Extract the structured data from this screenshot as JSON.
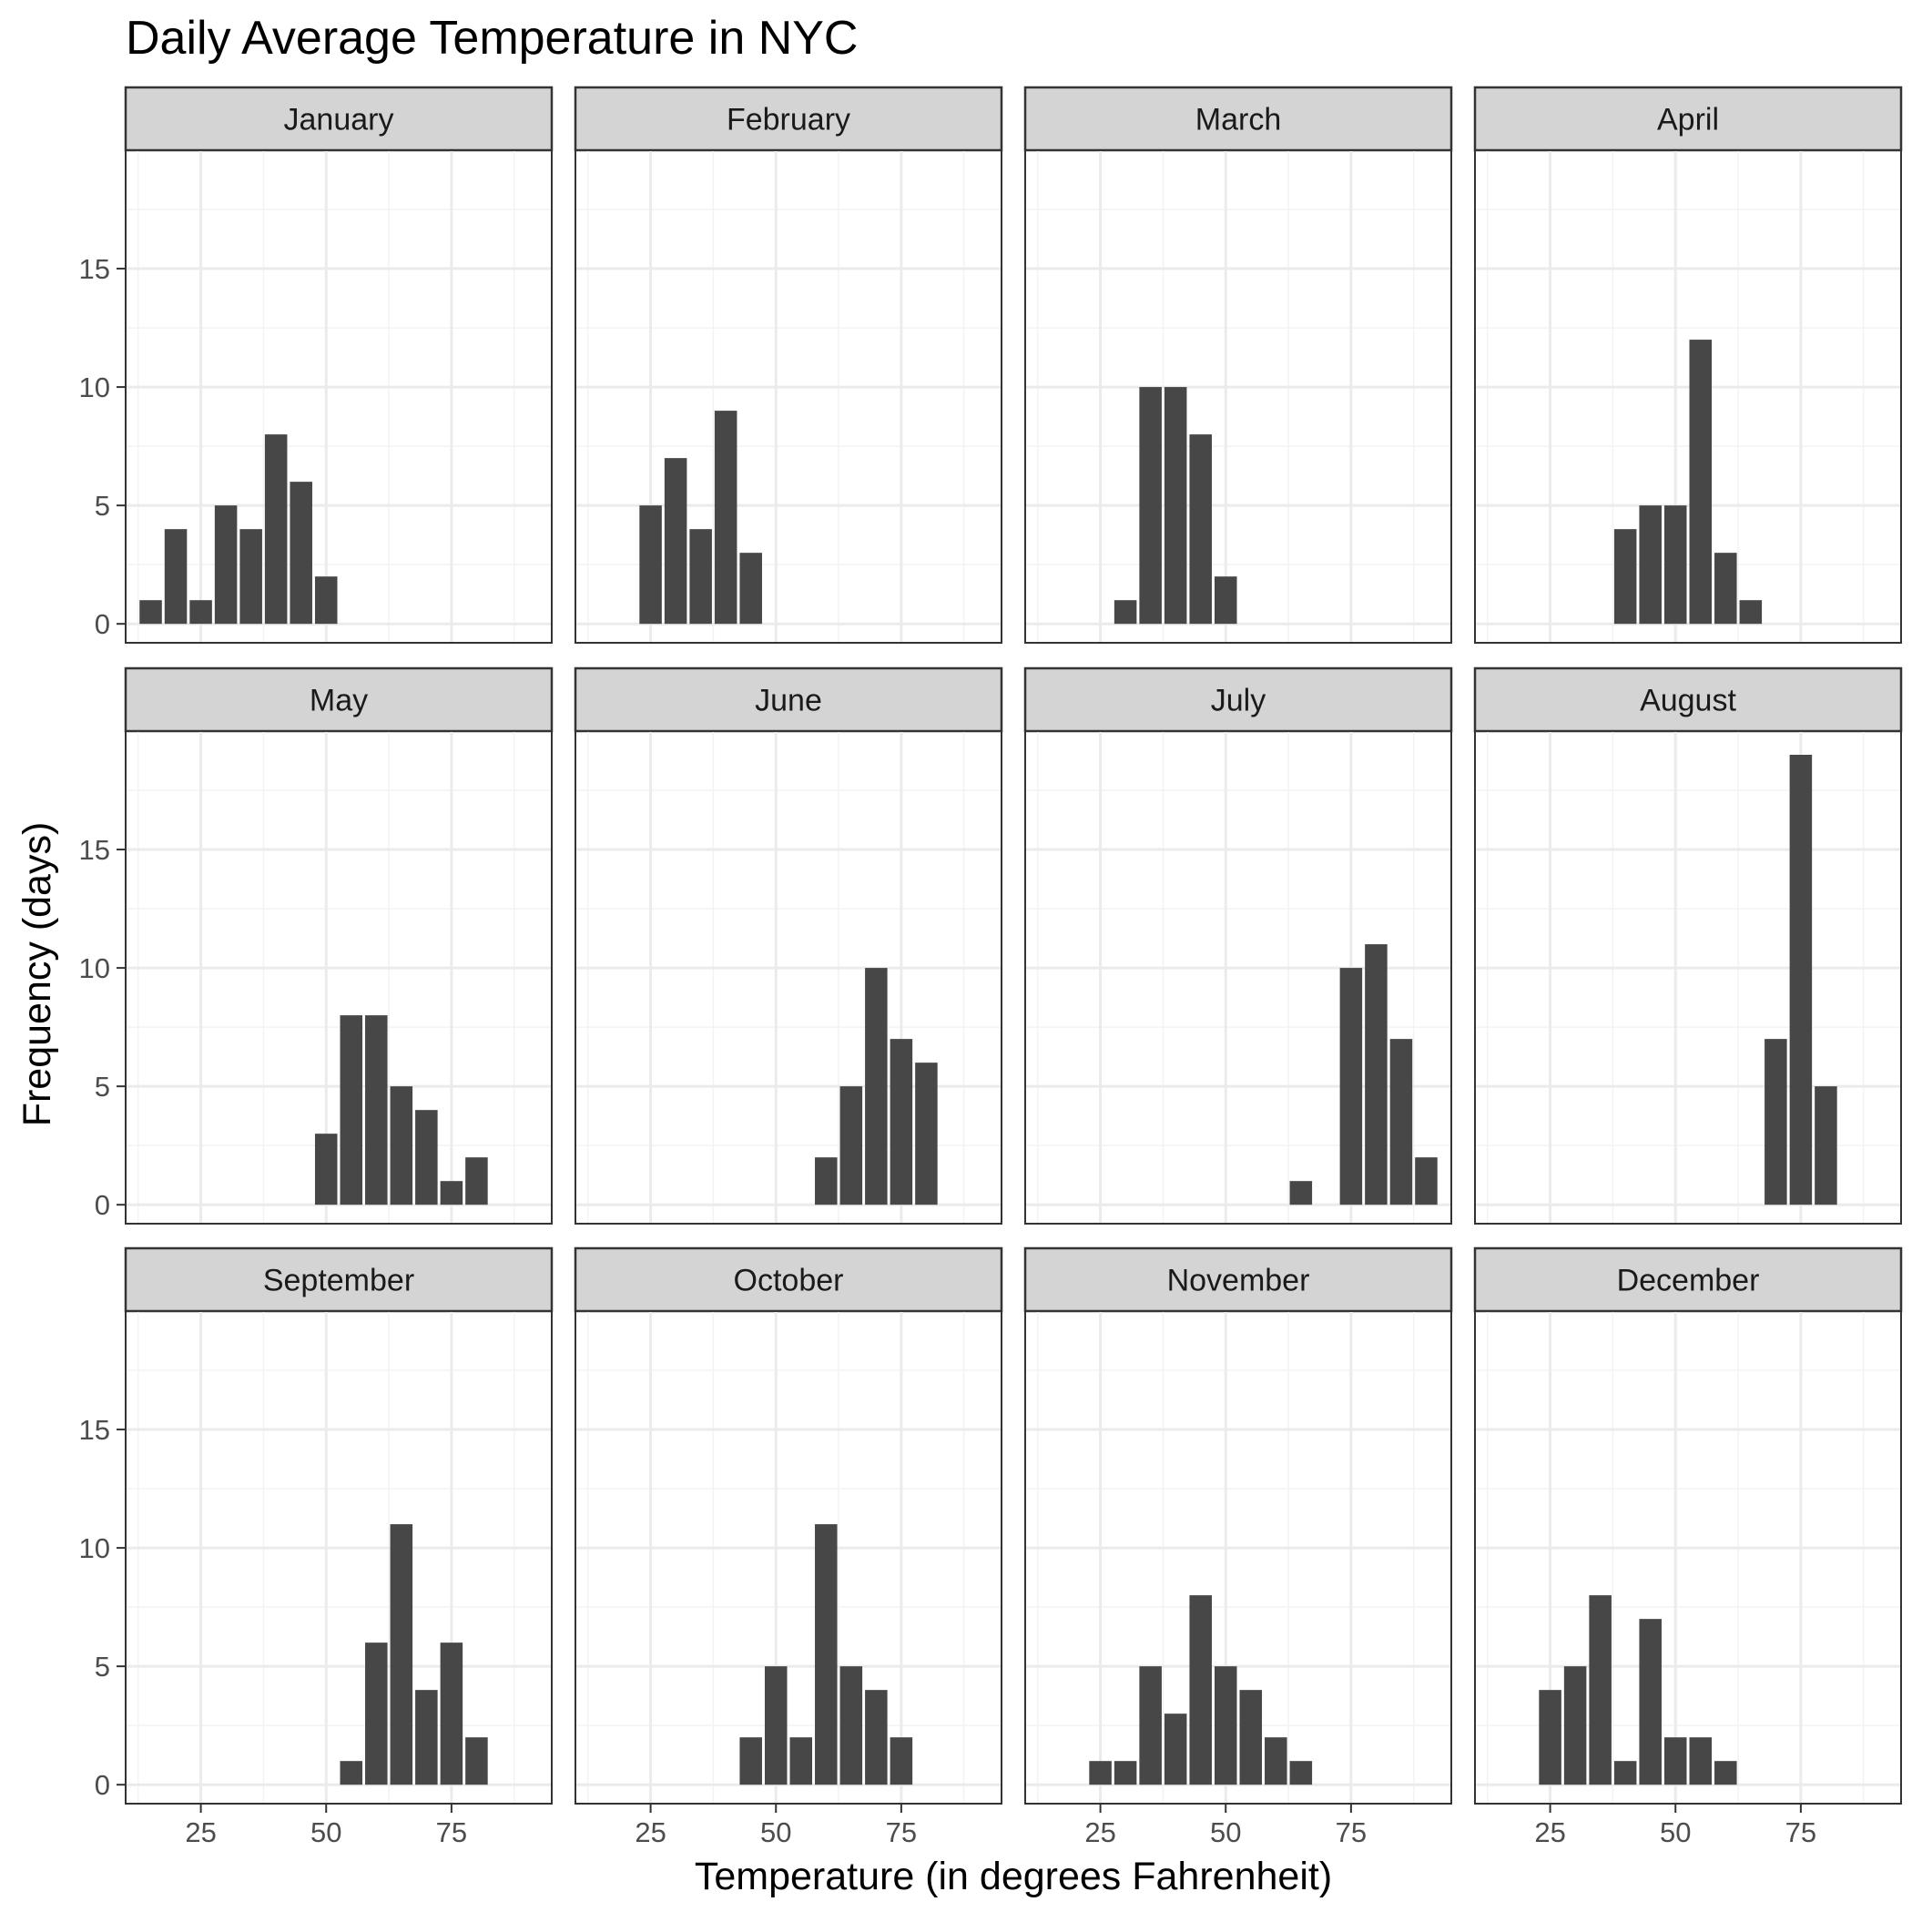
{
  "chart_data": {
    "type": "bar",
    "title": "Daily Average Temperature in NYC",
    "xlabel": "Temperature (in degrees Fahrenheit)",
    "ylabel": "Frequency (days)",
    "xlim": [
      10,
      95
    ],
    "ylim": [
      -0.8,
      20
    ],
    "x_ticks": [
      25,
      50,
      75
    ],
    "y_ticks": [
      0,
      5,
      10,
      15
    ],
    "bin_width": 5,
    "grid": true,
    "facets": [
      {
        "label": "January",
        "x": [
          15,
          20,
          25,
          30,
          35,
          40,
          45,
          50
        ],
        "values": [
          1,
          4,
          1,
          5,
          4,
          8,
          6,
          2
        ]
      },
      {
        "label": "February",
        "x": [
          25,
          30,
          35,
          40,
          45
        ],
        "values": [
          5,
          7,
          4,
          9,
          3
        ]
      },
      {
        "label": "March",
        "x": [
          30,
          35,
          40,
          45,
          50
        ],
        "values": [
          1,
          10,
          10,
          8,
          2
        ]
      },
      {
        "label": "April",
        "x": [
          40,
          45,
          50,
          55,
          60,
          65
        ],
        "values": [
          4,
          5,
          5,
          12,
          3,
          1
        ]
      },
      {
        "label": "May",
        "x": [
          50,
          55,
          60,
          65,
          70,
          75,
          80
        ],
        "values": [
          3,
          8,
          8,
          5,
          4,
          1,
          2
        ]
      },
      {
        "label": "June",
        "x": [
          60,
          65,
          70,
          75,
          80
        ],
        "values": [
          2,
          5,
          10,
          7,
          6
        ]
      },
      {
        "label": "July",
        "x": [
          65,
          75,
          80,
          85,
          90
        ],
        "values": [
          1,
          10,
          11,
          7,
          2
        ]
      },
      {
        "label": "August",
        "x": [
          70,
          75,
          80
        ],
        "values": [
          7,
          19,
          5
        ]
      },
      {
        "label": "September",
        "x": [
          55,
          60,
          65,
          70,
          75,
          80
        ],
        "values": [
          1,
          6,
          11,
          4,
          6,
          2
        ]
      },
      {
        "label": "October",
        "x": [
          45,
          50,
          55,
          60,
          65,
          70,
          75
        ],
        "values": [
          2,
          5,
          2,
          11,
          5,
          4,
          2
        ]
      },
      {
        "label": "November",
        "x": [
          25,
          30,
          35,
          40,
          45,
          50,
          55,
          60,
          65
        ],
        "values": [
          1,
          1,
          5,
          3,
          8,
          5,
          4,
          2,
          1
        ]
      },
      {
        "label": "December",
        "x": [
          25,
          30,
          35,
          40,
          45,
          50,
          55,
          60
        ],
        "values": [
          4,
          5,
          8,
          1,
          7,
          2,
          2,
          1
        ]
      }
    ]
  },
  "colors": {
    "bar": "#474747",
    "strip_fill": "#d4d4d4",
    "strip_border": "#333333",
    "panel_border": "#333333",
    "grid_major": "#ebebeb",
    "grid_minor": "#f3f3f3",
    "tick_label": "#4d4d4d"
  }
}
